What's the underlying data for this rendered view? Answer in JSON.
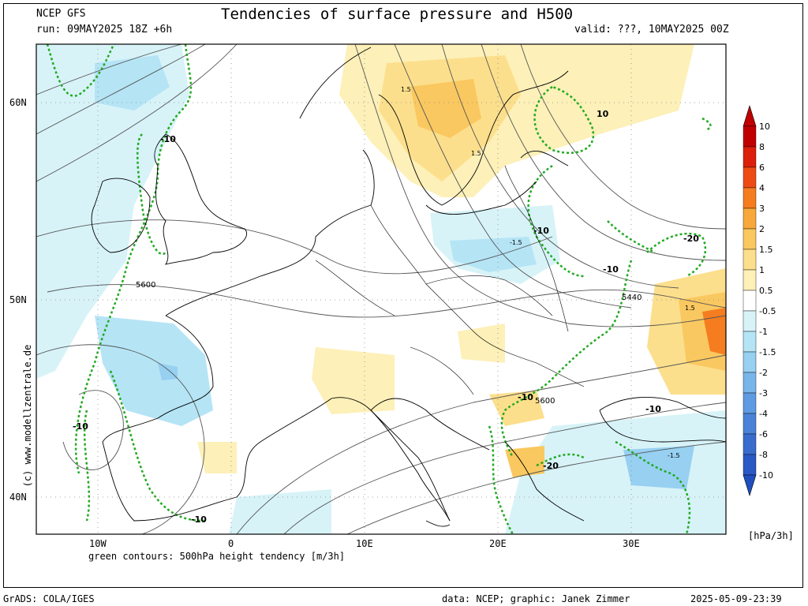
{
  "header": {
    "model": "NCEP GFS",
    "run": "run: 09MAY2025 18Z +6h",
    "title": "Tendencies of surface pressure and H500",
    "valid": "valid: ???, 10MAY2025 00Z"
  },
  "axes": {
    "lat_labels": [
      "60N",
      "50N",
      "40N"
    ],
    "lon_labels": [
      "10W",
      "0",
      "10E",
      "20E",
      "30E"
    ]
  },
  "legend": {
    "levels": [
      "10",
      "8",
      "6",
      "4",
      "3",
      "2",
      "1.5",
      "1",
      "0.5",
      "-0.5",
      "-1",
      "-1.5",
      "-2",
      "-3",
      "-4",
      "-6",
      "-8",
      "-10"
    ],
    "colors": [
      "#c00000",
      "#dc1e0a",
      "#ee4b14",
      "#f57d20",
      "#f8a83a",
      "#fac860",
      "#fcdf8c",
      "#fdf0b8",
      "#ffffff",
      "#d7f3f8",
      "#b5e4f5",
      "#97d0f1",
      "#78b5ea",
      "#5f9be2",
      "#4a82d8",
      "#3a6cce",
      "#2a58c4"
    ],
    "unit": "[hPa/3h]"
  },
  "contour_labels": {
    "h500_height": [
      "5600",
      "5440",
      "5600"
    ],
    "pressure_tendency": [
      "1.5",
      "1.5",
      "-1.5",
      "1.5",
      "-1.5"
    ],
    "height_tendency": [
      "-10",
      "-10",
      "-10",
      "-10",
      "-10",
      "-10",
      "-20",
      "-20",
      "-10",
      "10"
    ]
  },
  "footer": {
    "green_note": "green contours: 500hPa height tendency [m/3h]",
    "copyright": "(c) www.modellzentrale.de",
    "software": "GrADS: COLA/IGES",
    "credit": "data: NCEP; graphic: Janek Zimmer",
    "timestamp": "2025-05-09-23:39"
  },
  "colors": {
    "height_contour": "#22aa22",
    "isoline": "#555555",
    "coast": "#000000"
  }
}
